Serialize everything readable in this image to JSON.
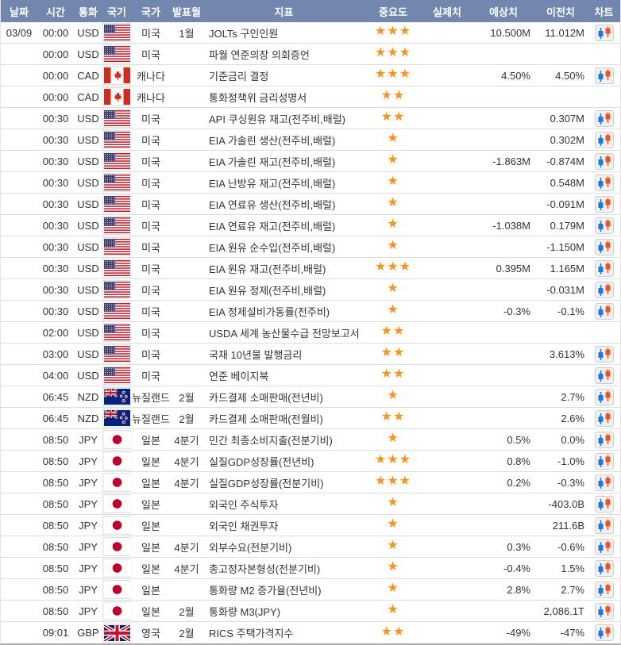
{
  "colors": {
    "header_bg": "#7187ad",
    "star_orange": "#f7941e",
    "candle_blue": "#1e78dc",
    "candle_red": "#f4511e"
  },
  "table": {
    "columns": [
      {
        "key": "date",
        "label": "날짜"
      },
      {
        "key": "time",
        "label": "시간"
      },
      {
        "key": "currency",
        "label": "통화"
      },
      {
        "key": "flag",
        "label": "국기"
      },
      {
        "key": "country",
        "label": "국가"
      },
      {
        "key": "month",
        "label": "발표월"
      },
      {
        "key": "indicator",
        "label": "지표"
      },
      {
        "key": "importance",
        "label": "중요도"
      },
      {
        "key": "actual",
        "label": "실제치"
      },
      {
        "key": "forecast",
        "label": "예상치"
      },
      {
        "key": "previous",
        "label": "이전치"
      },
      {
        "key": "chart",
        "label": "차트"
      }
    ],
    "rows": [
      {
        "date": "03/09",
        "time": "00:00",
        "currency": "USD",
        "flag": "us",
        "country": "미국",
        "month": "1월",
        "indicator": "JOLTs 구인인원",
        "stars": 3,
        "actual": "",
        "forecast": "10.500M",
        "previous": "11.012M",
        "chart": true
      },
      {
        "date": "",
        "time": "00:00",
        "currency": "USD",
        "flag": "us",
        "country": "미국",
        "month": "",
        "indicator": "파월 연준의장 의회증언",
        "stars": 3,
        "actual": "",
        "forecast": "",
        "previous": "",
        "chart": false
      },
      {
        "date": "",
        "time": "00:00",
        "currency": "CAD",
        "flag": "ca",
        "country": "캐나다",
        "month": "",
        "indicator": "기준금리 결정",
        "stars": 3,
        "actual": "",
        "forecast": "4.50%",
        "previous": "4.50%",
        "chart": true
      },
      {
        "date": "",
        "time": "00:00",
        "currency": "CAD",
        "flag": "ca",
        "country": "캐나다",
        "month": "",
        "indicator": "통화정책위 금리성명서",
        "stars": 2,
        "actual": "",
        "forecast": "",
        "previous": "",
        "chart": false
      },
      {
        "date": "",
        "time": "00:30",
        "currency": "USD",
        "flag": "us",
        "country": "미국",
        "month": "",
        "indicator": "API 쿠싱원유 재고(전주비,배럴)",
        "stars": 2,
        "actual": "",
        "forecast": "",
        "previous": "0.307M",
        "chart": true
      },
      {
        "date": "",
        "time": "00:30",
        "currency": "USD",
        "flag": "us",
        "country": "미국",
        "month": "",
        "indicator": "EIA 가솔린 생산(전주비,배럴)",
        "stars": 1,
        "actual": "",
        "forecast": "",
        "previous": "0.302M",
        "chart": true
      },
      {
        "date": "",
        "time": "00:30",
        "currency": "USD",
        "flag": "us",
        "country": "미국",
        "month": "",
        "indicator": "EIA 가솔린 재고(전주비,배럴)",
        "stars": 1,
        "actual": "",
        "forecast": "-1.863M",
        "previous": "-0.874M",
        "chart": true
      },
      {
        "date": "",
        "time": "00:30",
        "currency": "USD",
        "flag": "us",
        "country": "미국",
        "month": "",
        "indicator": "EIA 난방유 재고(전주비,배럴)",
        "stars": 1,
        "actual": "",
        "forecast": "",
        "previous": "0.548M",
        "chart": true
      },
      {
        "date": "",
        "time": "00:30",
        "currency": "USD",
        "flag": "us",
        "country": "미국",
        "month": "",
        "indicator": "EIA 연료유 생산(전주비,배럴)",
        "stars": 1,
        "actual": "",
        "forecast": "",
        "previous": "-0.091M",
        "chart": true
      },
      {
        "date": "",
        "time": "00:30",
        "currency": "USD",
        "flag": "us",
        "country": "미국",
        "month": "",
        "indicator": "EIA 연료유 재고(전주비,배럴)",
        "stars": 1,
        "actual": "",
        "forecast": "-1.038M",
        "previous": "0.179M",
        "chart": true
      },
      {
        "date": "",
        "time": "00:30",
        "currency": "USD",
        "flag": "us",
        "country": "미국",
        "month": "",
        "indicator": "EIA 원유 순수입(전주비,배럴)",
        "stars": 1,
        "actual": "",
        "forecast": "",
        "previous": "-1.150M",
        "chart": true
      },
      {
        "date": "",
        "time": "00:30",
        "currency": "USD",
        "flag": "us",
        "country": "미국",
        "month": "",
        "indicator": "EIA 원유 재고(전주비,배럴)",
        "stars": 3,
        "actual": "",
        "forecast": "0.395M",
        "previous": "1.165M",
        "chart": true
      },
      {
        "date": "",
        "time": "00:30",
        "currency": "USD",
        "flag": "us",
        "country": "미국",
        "month": "",
        "indicator": "EIA 원유 정제(전주비,배럴)",
        "stars": 1,
        "actual": "",
        "forecast": "",
        "previous": "-0.031M",
        "chart": true
      },
      {
        "date": "",
        "time": "00:30",
        "currency": "USD",
        "flag": "us",
        "country": "미국",
        "month": "",
        "indicator": "EIA 정제설비가동률(전주비)",
        "stars": 1,
        "actual": "",
        "forecast": "-0.3%",
        "previous": "-0.1%",
        "chart": true
      },
      {
        "date": "",
        "time": "02:00",
        "currency": "USD",
        "flag": "us",
        "country": "미국",
        "month": "",
        "indicator": "USDA 세계 농산물수급 전망보고서",
        "stars": 2,
        "actual": "",
        "forecast": "",
        "previous": "",
        "chart": false
      },
      {
        "date": "",
        "time": "03:00",
        "currency": "USD",
        "flag": "us",
        "country": "미국",
        "month": "",
        "indicator": "국채 10년물 발행금리",
        "stars": 2,
        "actual": "",
        "forecast": "",
        "previous": "3.613%",
        "chart": true
      },
      {
        "date": "",
        "time": "04:00",
        "currency": "USD",
        "flag": "us",
        "country": "미국",
        "month": "",
        "indicator": "연준 베이지북",
        "stars": 2,
        "actual": "",
        "forecast": "",
        "previous": "",
        "chart": true
      },
      {
        "date": "",
        "time": "06:45",
        "currency": "NZD",
        "flag": "nz",
        "country": "뉴질랜드",
        "month": "2월",
        "indicator": "카드결제 소매판매(전년비)",
        "stars": 1,
        "actual": "",
        "forecast": "",
        "previous": "2.7%",
        "chart": true
      },
      {
        "date": "",
        "time": "06:45",
        "currency": "NZD",
        "flag": "nz",
        "country": "뉴질랜드",
        "month": "2월",
        "indicator": "카드결제 소매판매(전월비)",
        "stars": 2,
        "actual": "",
        "forecast": "",
        "previous": "2.6%",
        "chart": true
      },
      {
        "date": "",
        "time": "08:50",
        "currency": "JPY",
        "flag": "jp",
        "country": "일본",
        "month": "4분기",
        "indicator": "민간 최종소비지출(전분기비)",
        "stars": 1,
        "actual": "",
        "forecast": "0.5%",
        "previous": "0.0%",
        "chart": true
      },
      {
        "date": "",
        "time": "08:50",
        "currency": "JPY",
        "flag": "jp",
        "country": "일본",
        "month": "4분기",
        "indicator": "실질GDP성장률(전년비)",
        "stars": 3,
        "actual": "",
        "forecast": "0.8%",
        "previous": "-1.0%",
        "chart": true
      },
      {
        "date": "",
        "time": "08:50",
        "currency": "JPY",
        "flag": "jp",
        "country": "일본",
        "month": "4분기",
        "indicator": "실질GDP성장률(전분기비)",
        "stars": 3,
        "actual": "",
        "forecast": "0.2%",
        "previous": "-0.3%",
        "chart": true
      },
      {
        "date": "",
        "time": "08:50",
        "currency": "JPY",
        "flag": "jp",
        "country": "일본",
        "month": "",
        "indicator": "외국인 주식투자",
        "stars": 1,
        "actual": "",
        "forecast": "",
        "previous": "-403.0B",
        "chart": true
      },
      {
        "date": "",
        "time": "08:50",
        "currency": "JPY",
        "flag": "jp",
        "country": "일본",
        "month": "",
        "indicator": "외국인 채권투자",
        "stars": 1,
        "actual": "",
        "forecast": "",
        "previous": "211.6B",
        "chart": true
      },
      {
        "date": "",
        "time": "08:50",
        "currency": "JPY",
        "flag": "jp",
        "country": "일본",
        "month": "4분기",
        "indicator": "외부수요(전분기비)",
        "stars": 1,
        "actual": "",
        "forecast": "0.3%",
        "previous": "-0.6%",
        "chart": true
      },
      {
        "date": "",
        "time": "08:50",
        "currency": "JPY",
        "flag": "jp",
        "country": "일본",
        "month": "4분기",
        "indicator": "총고정자본형성(전분기비)",
        "stars": 1,
        "actual": "",
        "forecast": "-0.4%",
        "previous": "1.5%",
        "chart": true
      },
      {
        "date": "",
        "time": "08:50",
        "currency": "JPY",
        "flag": "jp",
        "country": "일본",
        "month": "",
        "indicator": "통화량 M2 증가율(전년비)",
        "stars": 1,
        "actual": "",
        "forecast": "2.8%",
        "previous": "2.7%",
        "chart": true
      },
      {
        "date": "",
        "time": "08:50",
        "currency": "JPY",
        "flag": "jp",
        "country": "일본",
        "month": "2월",
        "indicator": "통화량 M3(JPY)",
        "stars": 1,
        "actual": "",
        "forecast": "",
        "previous": "2,086.1T",
        "chart": true
      },
      {
        "date": "",
        "time": "09:01",
        "currency": "GBP",
        "flag": "gb",
        "country": "영국",
        "month": "2월",
        "indicator": "RICS 주택가격지수",
        "stars": 2,
        "actual": "",
        "forecast": "-49%",
        "previous": "-47%",
        "chart": true
      }
    ]
  }
}
